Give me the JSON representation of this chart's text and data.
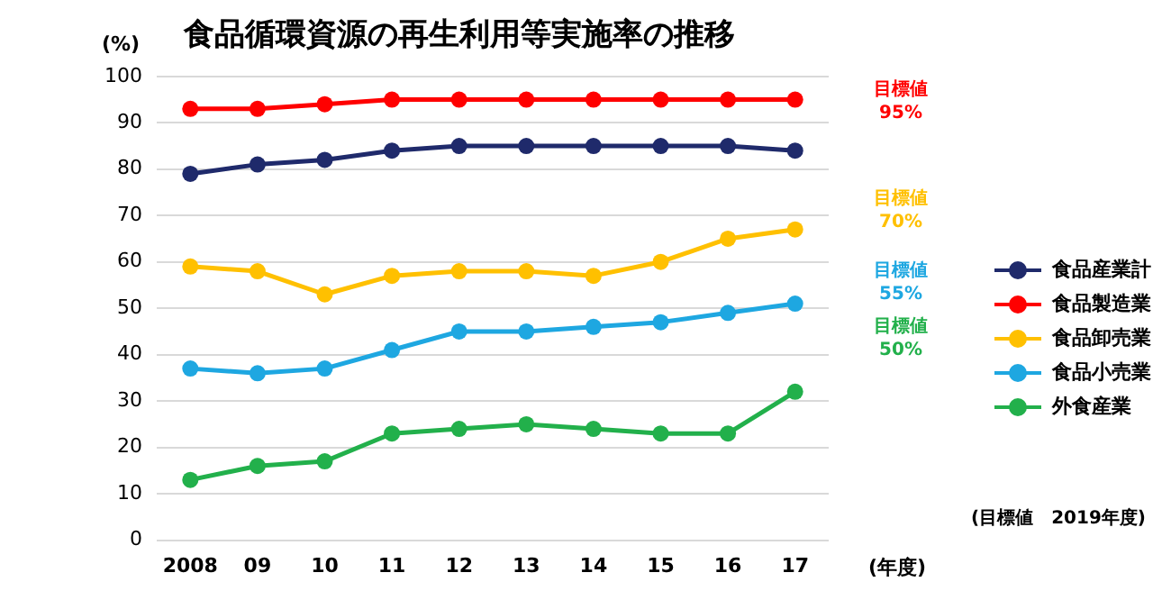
{
  "chart_data": {
    "type": "line",
    "title": "食品循環資源の再生利用等実施率の推移",
    "ylabel": "(%)",
    "xlabel": "(年度)",
    "categories": [
      "2008",
      "09",
      "10",
      "11",
      "12",
      "13",
      "14",
      "15",
      "16",
      "17"
    ],
    "series": [
      {
        "name": "食品産業計",
        "color": "#1f2a6b",
        "values": [
          79,
          81,
          82,
          84,
          85,
          85,
          85,
          85,
          85,
          84
        ]
      },
      {
        "name": "食品製造業",
        "color": "#ff0000",
        "values": [
          93,
          93,
          94,
          95,
          95,
          95,
          95,
          95,
          95,
          95
        ]
      },
      {
        "name": "食品卸売業",
        "color": "#ffc000",
        "values": [
          59,
          58,
          53,
          57,
          58,
          58,
          57,
          60,
          65,
          67
        ]
      },
      {
        "name": "食品小売業",
        "color": "#1ea7e1",
        "values": [
          37,
          36,
          37,
          41,
          45,
          45,
          46,
          47,
          49,
          51
        ]
      },
      {
        "name": "外食産業",
        "color": "#22b04b",
        "values": [
          13,
          16,
          17,
          23,
          24,
          25,
          24,
          23,
          23,
          32
        ]
      }
    ],
    "annotations": [
      "目標値\n95%",
      "目標値\n70%",
      "目標値\n55%",
      "目標値\n50%",
      "(目標値　2019年度)"
    ],
    "ylim": [
      0,
      100
    ],
    "yticks": [
      0,
      10,
      20,
      30,
      40,
      50,
      60,
      70,
      80,
      90,
      100
    ],
    "grid": "y",
    "legend": "right",
    "marker": "circle",
    "line_style": "solid"
  }
}
